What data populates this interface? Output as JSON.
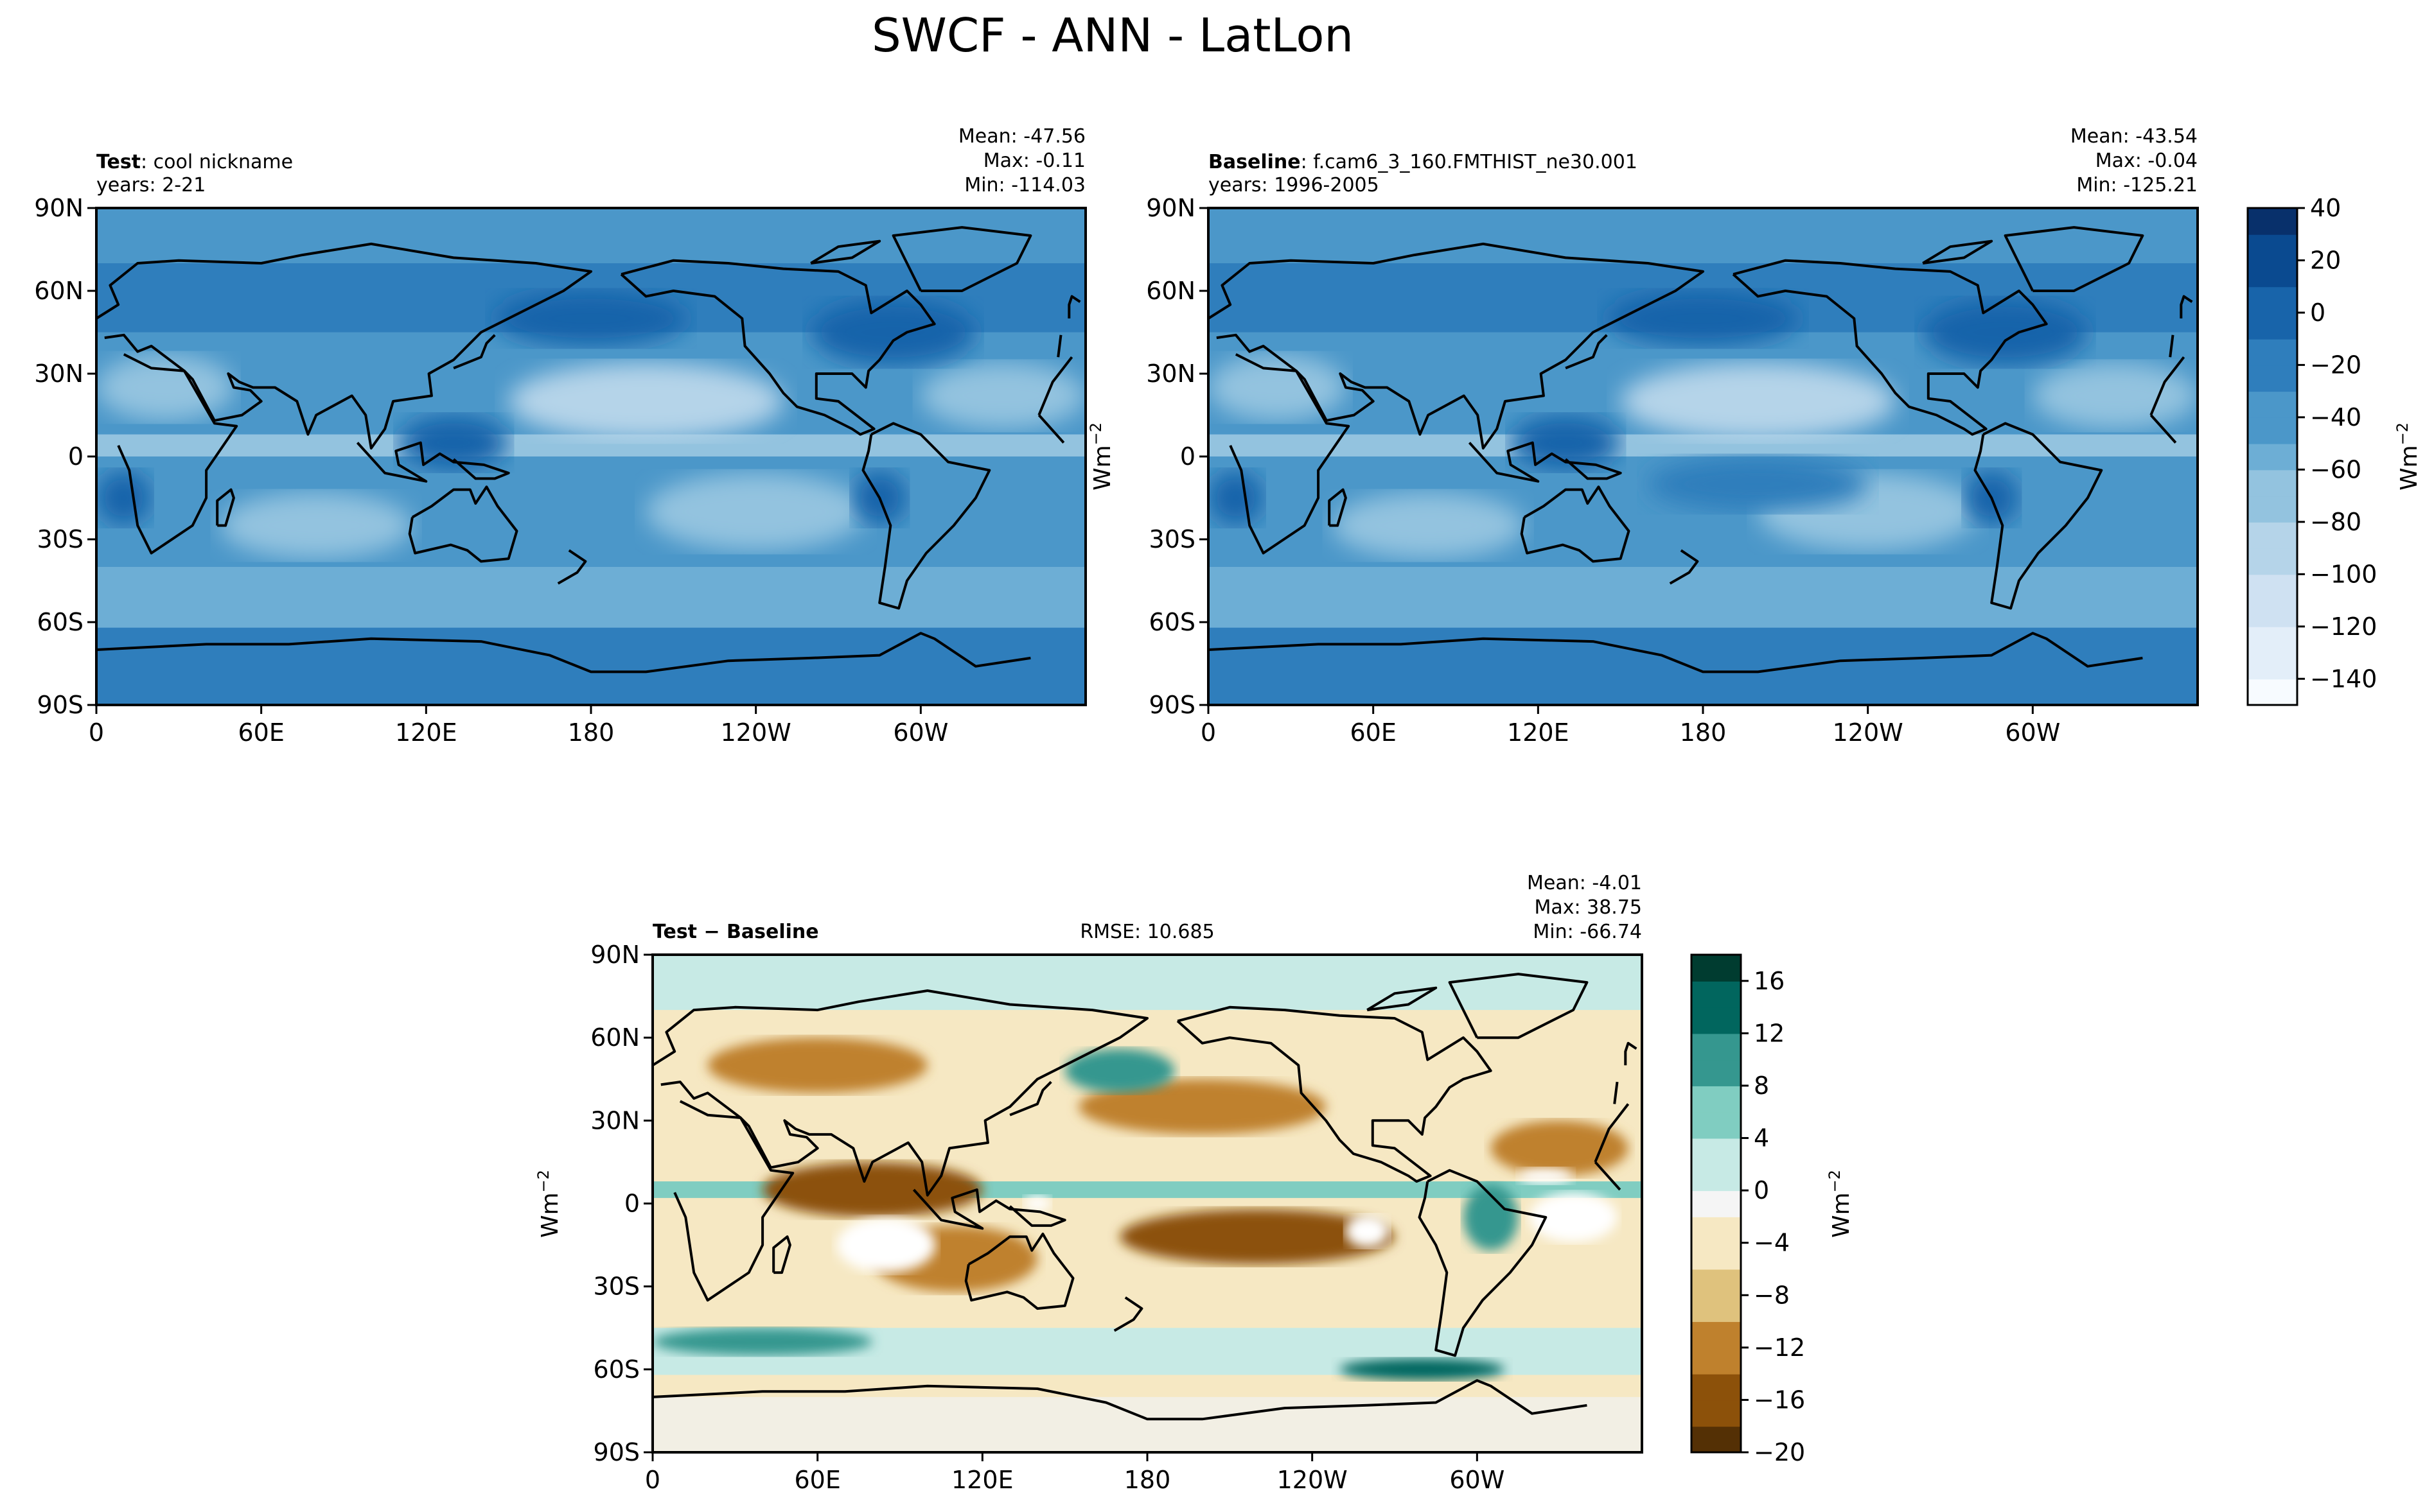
{
  "title": "SWCF - ANN - LatLon",
  "colors": {
    "blues": [
      "#f7fbff",
      "#e3eef9",
      "#cfe1f2",
      "#b5d4e9",
      "#93c3df",
      "#6daed5",
      "#4b97c9",
      "#2f7ebc",
      "#1864aa",
      "#0a4a90",
      "#08306b"
    ],
    "diverging": [
      "#543005",
      "#8c510a",
      "#bf812d",
      "#dfc27d",
      "#f6e8c3",
      "#f5f5f5",
      "#c7eae5",
      "#80cdc1",
      "#35978f",
      "#01665e",
      "#003c30"
    ],
    "land_outline": "#000000",
    "missing": "#ffffff"
  },
  "chart_data": [
    {
      "type": "heatmap",
      "panel": "test",
      "label_bold": "Test",
      "label_text": ": cool nickname",
      "years": "years: 2-21",
      "stats": {
        "mean": "Mean: -47.56",
        "max": "Max: -0.11",
        "min": "Min: -114.03"
      },
      "x_ticks": [
        "0",
        "60E",
        "120E",
        "180",
        "120W",
        "60W"
      ],
      "y_ticks": [
        "90N",
        "60N",
        "30N",
        "0",
        "30S",
        "60S",
        "90S"
      ],
      "ylabel": "",
      "xlim": [
        0,
        360
      ],
      "ylim": [
        -90,
        90
      ],
      "colormap": "blues"
    },
    {
      "type": "heatmap",
      "panel": "baseline",
      "label_bold": "Baseline",
      "label_text": ": f.cam6_3_160.FMTHIST_ne30.001",
      "years": "years: 1996-2005",
      "stats": {
        "mean": "Mean: -43.54",
        "max": "Max: -0.04",
        "min": "Min: -125.21"
      },
      "x_ticks": [
        "0",
        "60E",
        "120E",
        "180",
        "120W",
        "60W"
      ],
      "y_ticks": [
        "90N",
        "60N",
        "30N",
        "0",
        "30S",
        "60S",
        "90S"
      ],
      "ylabel": "Wm",
      "ylabel_sup": "−2",
      "xlim": [
        0,
        360
      ],
      "ylim": [
        -90,
        90
      ],
      "colormap": "blues",
      "colorbar": {
        "label": "Wm",
        "label_sup": "−2",
        "range": [
          -150,
          40
        ],
        "levels": 19,
        "ticks": [
          "40",
          "20",
          "0",
          "−20",
          "−40",
          "−60",
          "−80",
          "−100",
          "−120",
          "−140"
        ],
        "tick_values": [
          40,
          20,
          0,
          -20,
          -40,
          -60,
          -80,
          -100,
          -120,
          -140
        ]
      }
    },
    {
      "type": "heatmap",
      "panel": "difference",
      "label_bold": "Test − Baseline",
      "rmse": "RMSE: 10.685",
      "stats": {
        "mean": "Mean: -4.01",
        "max": "Max: 38.75",
        "min": "Min: -66.74"
      },
      "x_ticks": [
        "0",
        "60E",
        "120E",
        "180",
        "120W",
        "60W"
      ],
      "y_ticks": [
        "90N",
        "60N",
        "30N",
        "0",
        "30S",
        "60S",
        "90S"
      ],
      "ylabel": "Wm",
      "ylabel_sup": "−2",
      "xlim": [
        0,
        360
      ],
      "ylim": [
        -90,
        90
      ],
      "colormap": "diverging",
      "colorbar": {
        "label": "Wm",
        "label_sup": "−2",
        "range": [
          -20,
          18
        ],
        "levels": 19,
        "ticks": [
          "16",
          "12",
          "8",
          "4",
          "0",
          "−4",
          "−8",
          "−12",
          "−16",
          "−20"
        ],
        "tick_values": [
          16,
          12,
          8,
          4,
          0,
          -4,
          -8,
          -12,
          -16,
          -20
        ]
      }
    }
  ]
}
